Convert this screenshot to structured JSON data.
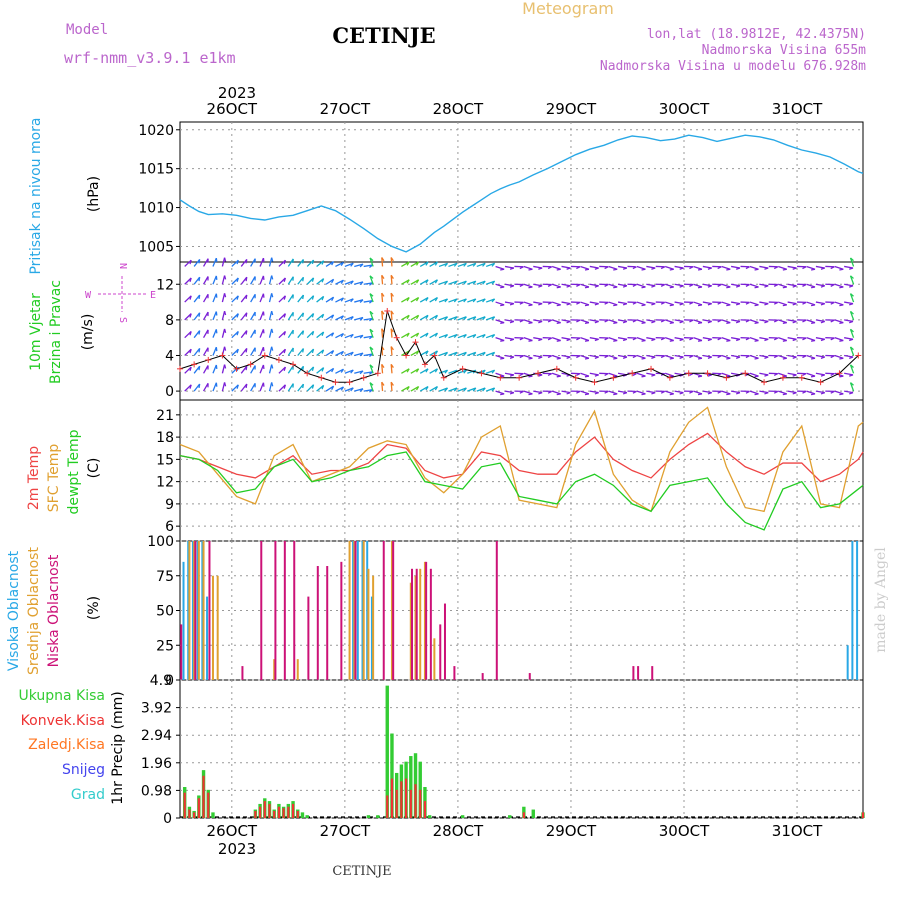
{
  "header": {
    "model_label": "Model",
    "model_name": "wrf-nmm_v3.9.1 e1km",
    "station": "CETINJE",
    "product": "Meteogram",
    "lonlat": "lon,lat (18.9812E, 42.4375N)",
    "elevation": "Nadmorska Visina 655m",
    "model_elevation": "Nadmorska Visina u modelu 676.928m"
  },
  "footer": {
    "station": "CETINJE",
    "credit": "made by Angel"
  },
  "time_axis": {
    "year": "2023",
    "day_labels": [
      "26OCT",
      "27OCT",
      "28OCT",
      "29OCT",
      "30OCT",
      "31OCT"
    ],
    "start": "2023-10-25 13:00",
    "end": "2023-10-31 14:00"
  },
  "colors": {
    "pressure": "#29a8e6",
    "temp2m": "#ee4444",
    "sfc_temp": "#e0a030",
    "dewpoint": "#22cc22",
    "cloud_high": "#29a8e6",
    "cloud_mid": "#e0a030",
    "cloud_low": "#cc1177",
    "precip_total": "#33cc33",
    "precip_conv": "#ee3333",
    "precip_frozen": "#ff7722",
    "snow": "#4444ee",
    "hail": "#33cccc",
    "wind_legend": "#cc44cc",
    "title": "#bb66cc",
    "meteogram_title": "#e8c070",
    "credit": "#cccccc"
  },
  "panels": {
    "pressure": {
      "label": "Pritisak na nivou mora",
      "unit": "(hPa)"
    },
    "wind": {
      "label_line1": "10m Vjetar",
      "label_line2": "Brzina i Pravac",
      "unit": "(m/s)",
      "compass_n": "N",
      "compass_s": "S",
      "compass_w": "W",
      "compass_e": "E"
    },
    "temperature": {
      "label_2m": "2m Temp",
      "label_sfc": "SFC Temp",
      "label_dew": "dewpt Temp",
      "unit": "(C)"
    },
    "clouds": {
      "label_high": "Visoka Oblacnost",
      "label_mid": "Srednja Oblacnost",
      "label_low": "Niska Oblacnost",
      "unit": "(%)"
    },
    "precip": {
      "legend": [
        "Ukupna Kisa",
        "Konvek.Kisa",
        "Zaledj.Kisa",
        "Snijeg",
        "Grad"
      ],
      "unit": "1hr Precip (mm)"
    }
  },
  "chart_data": [
    {
      "type": "line",
      "title": "Pritisak na nivou mora",
      "ylabel": "(hPa)",
      "ylim": [
        1003,
        1021
      ],
      "yticks": [
        "1005",
        "1010",
        "1015",
        "1020"
      ],
      "grid": true,
      "series": [
        {
          "name": "Pritisak na nivou mora",
          "x_hours": [
            0,
            2,
            4,
            6,
            9,
            12,
            15,
            18,
            21,
            24,
            27,
            30,
            33,
            36,
            39,
            42,
            45,
            48,
            51,
            54,
            56,
            58,
            60,
            62,
            64,
            66,
            68,
            70,
            72,
            75,
            78,
            81,
            84,
            87,
            90,
            93,
            96,
            99,
            102,
            105,
            108,
            111,
            114,
            117,
            120,
            123,
            126,
            129,
            132,
            135,
            138,
            141,
            144,
            145
          ],
          "values": [
            1011.0,
            1010.2,
            1009.5,
            1009.1,
            1009.2,
            1009.0,
            1008.6,
            1008.4,
            1008.8,
            1009.0,
            1009.6,
            1010.2,
            1009.6,
            1008.5,
            1007.3,
            1006.0,
            1005.0,
            1004.3,
            1005.3,
            1006.8,
            1007.6,
            1008.5,
            1009.4,
            1010.2,
            1011.0,
            1011.8,
            1012.4,
            1012.9,
            1013.3,
            1014.2,
            1015.0,
            1015.9,
            1016.8,
            1017.5,
            1018.0,
            1018.7,
            1019.2,
            1019.0,
            1018.6,
            1018.8,
            1019.3,
            1019.0,
            1018.5,
            1018.9,
            1019.3,
            1019.1,
            1018.7,
            1018.0,
            1017.4,
            1017.0,
            1016.5,
            1015.6,
            1014.6,
            1014.4
          ]
        }
      ]
    },
    {
      "type": "scatter",
      "title": "10m Vjetar Brzina i Pravac",
      "ylabel": "(m/s)",
      "ylim": [
        -1,
        14.5
      ],
      "yticks": [
        "0",
        "4",
        "8",
        "12"
      ],
      "grid": true,
      "series": [
        {
          "name": "Brzina",
          "x_hours": [
            0,
            3,
            6,
            9,
            12,
            15,
            18,
            21,
            24,
            27,
            30,
            33,
            36,
            39,
            42,
            44,
            46,
            48,
            50,
            52,
            54,
            56,
            60,
            64,
            68,
            72,
            76,
            80,
            84,
            88,
            92,
            96,
            100,
            104,
            108,
            112,
            116,
            120,
            124,
            128,
            132,
            136,
            140,
            144
          ],
          "values": [
            2.5,
            3.0,
            3.5,
            4.0,
            2.5,
            3.0,
            4.0,
            3.5,
            3.0,
            2.0,
            1.5,
            1.0,
            1.0,
            1.5,
            2.0,
            9.0,
            6.0,
            4.0,
            5.5,
            3.0,
            4.0,
            1.5,
            2.5,
            2.0,
            1.5,
            1.5,
            2.0,
            2.5,
            1.5,
            1.0,
            1.5,
            2.0,
            2.5,
            1.5,
            2.0,
            2.0,
            1.5,
            2.0,
            1.0,
            1.5,
            1.5,
            1.0,
            2.0,
            4.0
          ]
        }
      ]
    },
    {
      "type": "line",
      "title": "2m Temp / SFC Temp / dewpt Temp",
      "ylabel": "(C)",
      "ylim": [
        4,
        23
      ],
      "yticks": [
        "6",
        "9",
        "12",
        "15",
        "18",
        "21"
      ],
      "grid": true,
      "series": [
        {
          "name": "2m Temp",
          "x_hours": [
            0,
            4,
            8,
            12,
            16,
            20,
            24,
            28,
            32,
            36,
            40,
            44,
            48,
            52,
            56,
            60,
            64,
            68,
            72,
            76,
            80,
            84,
            88,
            92,
            96,
            100,
            104,
            108,
            112,
            116,
            120,
            124,
            128,
            132,
            136,
            140,
            144,
            145
          ],
          "values": [
            15.5,
            15.0,
            14.0,
            13.0,
            12.5,
            14.0,
            15.5,
            13.0,
            13.5,
            13.5,
            14.5,
            17.0,
            16.5,
            13.5,
            12.5,
            13.0,
            16.0,
            15.5,
            13.5,
            13.0,
            13.0,
            16.0,
            18.0,
            15.0,
            13.5,
            12.5,
            15.0,
            17.0,
            18.5,
            16.0,
            14.0,
            13.0,
            14.5,
            14.5,
            12.0,
            13.0,
            15.0,
            16.0
          ]
        },
        {
          "name": "SFC Temp",
          "x_hours": [
            0,
            4,
            8,
            12,
            16,
            20,
            24,
            28,
            32,
            36,
            40,
            44,
            48,
            52,
            56,
            60,
            64,
            68,
            72,
            76,
            80,
            84,
            88,
            92,
            96,
            100,
            104,
            108,
            112,
            116,
            120,
            124,
            128,
            132,
            136,
            140,
            144,
            145
          ],
          "values": [
            17.0,
            16.0,
            13.0,
            10.0,
            9.0,
            15.5,
            17.0,
            12.0,
            13.0,
            14.0,
            16.5,
            17.5,
            17.0,
            12.5,
            10.5,
            13.0,
            18.0,
            19.5,
            9.5,
            9.0,
            8.5,
            17.0,
            21.5,
            13.0,
            9.5,
            8.0,
            16.0,
            20.0,
            22.0,
            14.0,
            8.5,
            8.0,
            16.0,
            19.5,
            9.0,
            8.5,
            19.5,
            20.0
          ]
        },
        {
          "name": "dewpt Temp",
          "x_hours": [
            0,
            4,
            8,
            12,
            16,
            20,
            24,
            28,
            32,
            36,
            40,
            44,
            48,
            52,
            56,
            60,
            64,
            68,
            72,
            76,
            80,
            84,
            88,
            92,
            96,
            100,
            104,
            108,
            112,
            116,
            120,
            124,
            128,
            132,
            136,
            140,
            144,
            145
          ],
          "values": [
            15.5,
            15.0,
            13.5,
            10.5,
            11.0,
            14.0,
            15.0,
            12.0,
            12.5,
            13.5,
            14.0,
            15.5,
            16.0,
            12.0,
            11.5,
            11.0,
            14.0,
            14.5,
            10.0,
            9.5,
            9.0,
            12.0,
            13.0,
            11.5,
            9.0,
            8.0,
            11.5,
            12.0,
            12.5,
            9.0,
            6.5,
            5.5,
            11.0,
            12.0,
            8.5,
            9.0,
            11.0,
            11.5
          ]
        }
      ]
    },
    {
      "type": "bar",
      "title": "Visoka / Srednja / Niska Oblacnost",
      "ylabel": "(%)",
      "ylim": [
        0,
        100
      ],
      "yticks": [
        "0",
        "25",
        "50",
        "75",
        "100"
      ],
      "grid": true,
      "series": [
        {
          "name": "Visoka Oblacnost",
          "x_hours": [
            1,
            2,
            3,
            4,
            5,
            6,
            37,
            38,
            39,
            40,
            41,
            142,
            143,
            144
          ],
          "values": [
            85,
            100,
            100,
            100,
            100,
            60,
            100,
            100,
            100,
            100,
            60,
            25,
            100,
            100
          ]
        },
        {
          "name": "Srednja Oblacnost",
          "x_hours": [
            2,
            3,
            4,
            5,
            7,
            8,
            20,
            25,
            36,
            37,
            39,
            40,
            41,
            45,
            49,
            50,
            51,
            52,
            54
          ],
          "values": [
            100,
            100,
            100,
            100,
            75,
            75,
            15,
            15,
            100,
            100,
            100,
            80,
            75,
            100,
            70,
            75,
            80,
            85,
            30
          ]
        },
        {
          "name": "Niska Oblacnost",
          "x_hours": [
            0,
            3,
            6,
            13,
            17,
            20,
            22,
            24,
            27,
            29,
            31,
            34,
            37,
            43,
            45,
            49,
            50,
            52,
            53,
            55,
            56,
            58,
            64,
            67,
            74,
            96,
            97,
            100
          ],
          "values": [
            40,
            100,
            100,
            10,
            100,
            100,
            100,
            100,
            60,
            82,
            82,
            85,
            100,
            100,
            100,
            80,
            80,
            85,
            80,
            40,
            55,
            10,
            5,
            100,
            5,
            10,
            10,
            10
          ]
        }
      ]
    },
    {
      "type": "bar",
      "title": "1hr Precip (mm)",
      "ylabel": "1hr Precip (mm)",
      "ylim": [
        0,
        4.9
      ],
      "yticks": [
        "0",
        "0.98",
        "1.96",
        "2.94",
        "3.92",
        "4.9"
      ],
      "grid": true,
      "series": [
        {
          "name": "Ukupna Kisa",
          "x_hours": [
            1,
            2,
            3,
            4,
            5,
            6,
            7,
            16,
            17,
            18,
            19,
            20,
            21,
            22,
            23,
            24,
            25,
            26,
            27,
            40,
            42,
            44,
            45,
            46,
            47,
            48,
            49,
            50,
            51,
            52,
            53,
            60,
            70,
            73,
            75,
            145
          ],
          "values": [
            1.1,
            0.4,
            0.25,
            0.8,
            1.7,
            1.0,
            0.2,
            0.3,
            0.5,
            0.7,
            0.6,
            0.3,
            0.5,
            0.4,
            0.5,
            0.6,
            0.3,
            0.2,
            0.1,
            0.1,
            0.1,
            4.7,
            3.0,
            1.6,
            1.9,
            2.0,
            2.2,
            2.3,
            2.0,
            1.1,
            0.1,
            0.1,
            0.1,
            0.4,
            0.3,
            0.2
          ]
        },
        {
          "name": "Konvek.Kisa",
          "x_hours": [
            1,
            2,
            3,
            4,
            5,
            6,
            16,
            17,
            18,
            19,
            20,
            21,
            22,
            23,
            24,
            25,
            44,
            45,
            46,
            47,
            48,
            49,
            50,
            51,
            52,
            73,
            145
          ],
          "values": [
            0.9,
            0.3,
            0.2,
            0.7,
            1.5,
            0.9,
            0.25,
            0.4,
            0.6,
            0.5,
            0.25,
            0.4,
            0.35,
            0.4,
            0.5,
            0.25,
            0.8,
            1.4,
            1.0,
            1.3,
            1.4,
            1.0,
            1.2,
            1.0,
            0.6,
            0.2,
            0.2
          ]
        }
      ]
    }
  ]
}
